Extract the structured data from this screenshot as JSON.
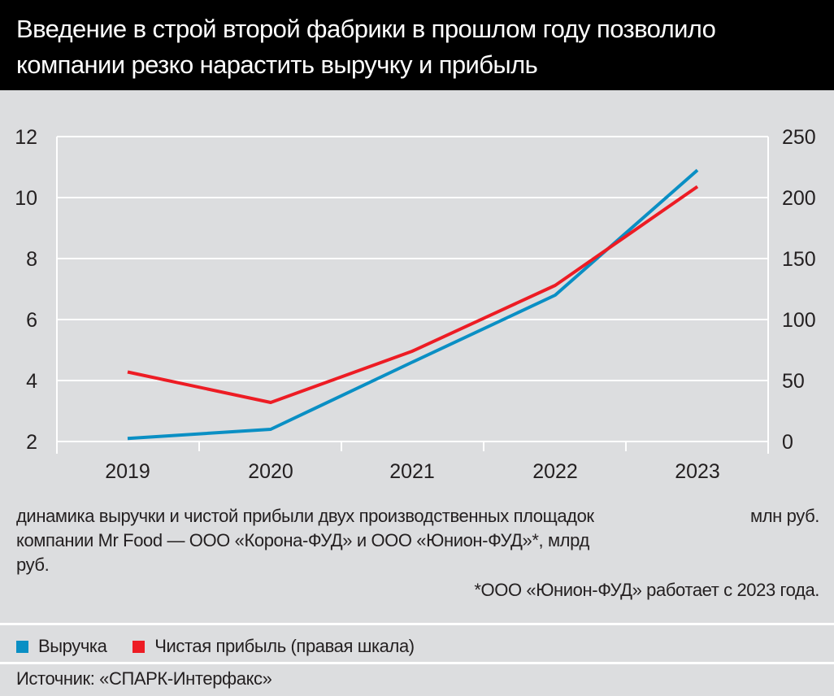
{
  "header": {
    "title": "Введение в строй второй фабрики в прошлом году позволило компании резко нарастить выручку и прибыль"
  },
  "caption": {
    "left": "динамика выручки и чистой прибыли двух производственных площадок компании Mr Food — ООО «Корона-ФУД» и ООО «Юнион-ФУД»*, млрд руб.",
    "right": "млн руб.",
    "footnote": "*ООО «Юнион-ФУД» работает с 2023 года."
  },
  "legend": [
    {
      "label": "Выручка",
      "color": "#0a8fc4"
    },
    {
      "label": "Чистая прибыль (правая шкала)",
      "color": "#ed1c24"
    }
  ],
  "source": "Источник: «СПАРК-Интерфакс»",
  "chart_data": {
    "type": "line",
    "categories": [
      "2019",
      "2020",
      "2021",
      "2022",
      "2023"
    ],
    "y_left": {
      "range": [
        2,
        12
      ],
      "ticks": [
        "2",
        "4",
        "6",
        "8",
        "10",
        "12"
      ],
      "unit": "млрд руб."
    },
    "y_right": {
      "range": [
        0,
        250
      ],
      "ticks": [
        "0",
        "50",
        "100",
        "150",
        "200",
        "250"
      ],
      "unit": "млн руб."
    },
    "grid": true,
    "series": [
      {
        "name": "Выручка",
        "axis": "left",
        "color": "#0a8fc4",
        "values": [
          2.1,
          2.4,
          4.6,
          6.8,
          10.9
        ]
      },
      {
        "name": "Чистая прибыль (правая шкала)",
        "axis": "right",
        "color": "#ed1c24",
        "values": [
          57,
          32,
          74,
          128,
          209
        ]
      }
    ]
  }
}
